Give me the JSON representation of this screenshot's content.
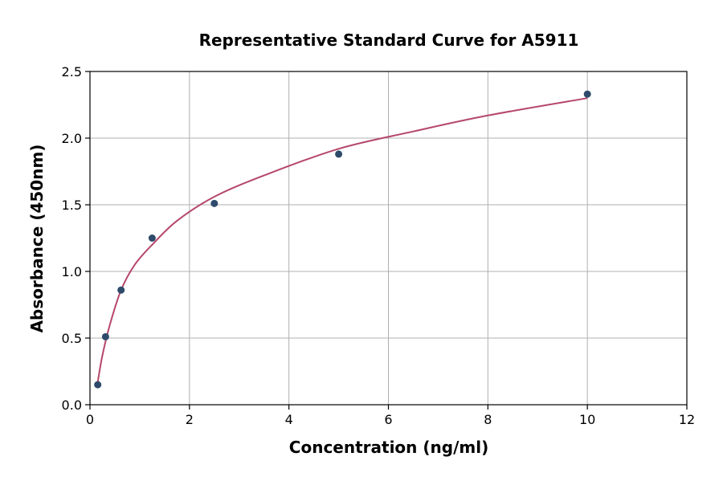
{
  "chart_data": {
    "type": "scatter",
    "title": "Representative Standard Curve for A5911",
    "xlabel": "Concentration (ng/ml)",
    "ylabel": "Absorbance (450nm)",
    "xlim": [
      0,
      12
    ],
    "ylim": [
      0,
      2.5
    ],
    "xticks": [
      "0",
      "2",
      "4",
      "6",
      "8",
      "10",
      "12"
    ],
    "yticks": [
      "0.0",
      "0.5",
      "1.0",
      "1.5",
      "2.0",
      "2.5"
    ],
    "grid": true,
    "legend": "none",
    "series": [
      {
        "kind": "points",
        "color": "#2e4a6b",
        "x": [
          0.156,
          0.313,
          0.625,
          1.25,
          2.5,
          5,
          10
        ],
        "y": [
          0.15,
          0.51,
          0.86,
          1.25,
          1.51,
          1.88,
          2.33
        ]
      },
      {
        "kind": "fit-curve",
        "color": "#b5476a",
        "x": [
          0.156,
          0.25,
          0.4,
          0.625,
          0.9,
          1.25,
          1.75,
          2.5,
          3.5,
          5,
          6.5,
          8,
          10
        ],
        "y": [
          0.17,
          0.37,
          0.6,
          0.86,
          1.05,
          1.2,
          1.38,
          1.56,
          1.72,
          1.92,
          2.05,
          2.17,
          2.3
        ]
      }
    ]
  }
}
